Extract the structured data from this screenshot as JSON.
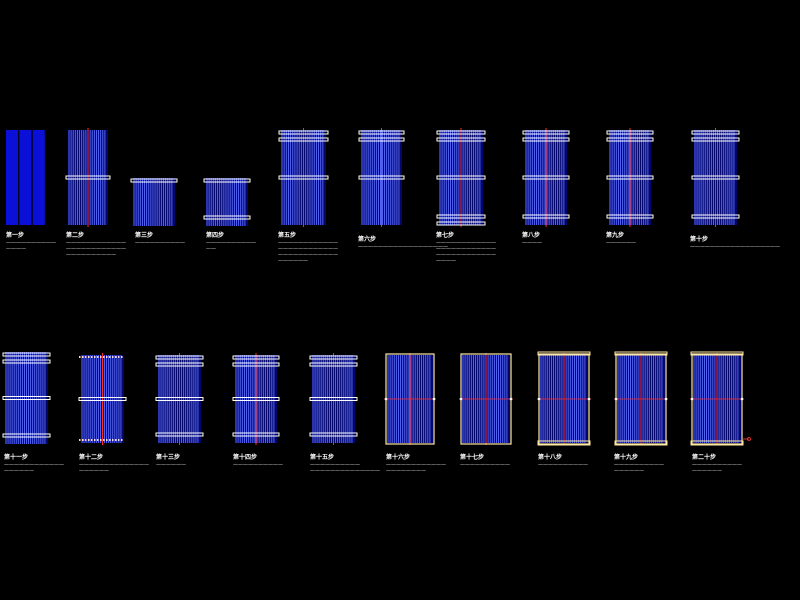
{
  "colors": {
    "panel": "#0a10d8",
    "panel_dark": "#03066a",
    "tube": "#5b6cff",
    "bar": "#ffffff",
    "bar_warm": "#ffe9a6",
    "center": "#ff2a2a",
    "ends": "#ff3b3b"
  },
  "steps": [
    {
      "title": "第一步",
      "desc": "——————————\n————"
    },
    {
      "title": "第二步",
      "desc": "————————————\n————————————\n——————————"
    },
    {
      "title": "第三步",
      "desc": "——————————"
    },
    {
      "title": "第四步",
      "desc": "——————————\n——"
    },
    {
      "title": "第五步",
      "desc": "————————————\n————————————\n————————————\n——————"
    },
    {
      "title": "第六步",
      "desc": "——————————————————"
    },
    {
      "title": "第七步",
      "desc": "————————————\n————————————\n————————————\n————"
    },
    {
      "title": "第八步",
      "desc": "————"
    },
    {
      "title": "第九步",
      "desc": "——————"
    },
    {
      "title": "第十步",
      "desc": "——————————————————"
    },
    {
      "title": "第十一步",
      "desc": "————————————\n——————"
    },
    {
      "title": "第十二步",
      "desc": "——————————————\n——————"
    },
    {
      "title": "第十三步",
      "desc": "——————"
    },
    {
      "title": "第十四步",
      "desc": "——————————"
    },
    {
      "title": "第十五步",
      "desc": "——————————\n——————————————"
    },
    {
      "title": "第十六步",
      "desc": "————————————\n————————"
    },
    {
      "title": "第十七步",
      "desc": "——————————"
    },
    {
      "title": "第十八步",
      "desc": "——————————"
    },
    {
      "title": "第十九步",
      "desc": "——————————\n——————"
    },
    {
      "title": "第二十步",
      "desc": "——————————\n——————"
    }
  ]
}
